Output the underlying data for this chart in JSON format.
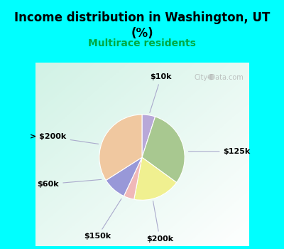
{
  "title": "Income distribution in Washington, UT\n(%)",
  "subtitle": "Multirace residents",
  "subtitle_color": "#00aa44",
  "background_color": "#00ffff",
  "watermark": "City-Data.com",
  "slices": [
    {
      "label": "$10k",
      "value": 5,
      "color": "#b8a8d8"
    },
    {
      "label": "$125k",
      "value": 30,
      "color": "#a8c890"
    },
    {
      "label": "$200k",
      "value": 18,
      "color": "#f0f090"
    },
    {
      "label": "$150k",
      "value": 4,
      "color": "#f0b8b8"
    },
    {
      "label": "$60k",
      "value": 9,
      "color": "#9898d8"
    },
    {
      "label": "> $200k",
      "value": 34,
      "color": "#f0c8a0"
    }
  ],
  "figsize": [
    4.0,
    3.5
  ],
  "dpi": 100
}
